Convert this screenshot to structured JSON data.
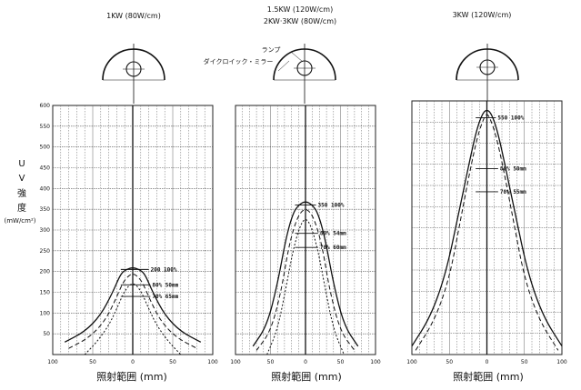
{
  "y_axis_label": {
    "line1": "U",
    "line2": "V",
    "line3": "強",
    "line4": "度",
    "unit": "(mW/cm²)"
  },
  "lamp_labels": {
    "lamp": "ランプ",
    "mirror": "ダイクロイック・ミラー"
  },
  "chart_data": [
    {
      "type": "line",
      "title": "1KW (80W/cm)",
      "xlabel": "照射範囲 (mm)",
      "ylabel": "UV強度 (mW/cm²)",
      "x_ticks": [
        "100",
        "50",
        "0",
        "50",
        "100"
      ],
      "xlim": [
        -100,
        100
      ],
      "y_ticks": [
        "50",
        "100",
        "150",
        "200",
        "250",
        "300",
        "350",
        "400",
        "450",
        "500",
        "550",
        "600"
      ],
      "ylim": [
        0,
        600
      ],
      "grid": true,
      "series": [
        {
          "x": [
            -85,
            -60,
            -40,
            -25,
            -15,
            -8,
            0,
            8,
            15,
            25,
            40,
            60,
            85
          ],
          "y": [
            30,
            55,
            95,
            150,
            195,
            205,
            210,
            205,
            195,
            150,
            95,
            55,
            30
          ]
        },
        {
          "x": [
            -80,
            -55,
            -35,
            -22,
            -12,
            -5,
            0,
            5,
            12,
            22,
            35,
            55,
            80
          ],
          "y": [
            15,
            40,
            80,
            130,
            175,
            190,
            195,
            190,
            175,
            130,
            80,
            40,
            15
          ]
        },
        {
          "x": [
            -60,
            -45,
            -30,
            -20,
            -10,
            0,
            10,
            20,
            30,
            45,
            60
          ],
          "y": [
            0,
            30,
            70,
            110,
            155,
            175,
            155,
            110,
            70,
            30,
            0
          ]
        }
      ],
      "annotations": [
        {
          "text": "200 100%",
          "x": 20,
          "y": 205
        },
        {
          "text": "80% 50mm",
          "x": 22,
          "y": 168
        },
        {
          "text": "70% 65mm",
          "x": 22,
          "y": 140
        }
      ]
    },
    {
      "type": "line",
      "title": "1.5KW (120W/cm)",
      "subtitle": "2KW·3KW (80W/cm)",
      "xlabel": "照射範囲 (mm)",
      "ylabel": "UV強度 (mW/cm²)",
      "x_ticks": [
        "100",
        "50",
        "0",
        "50",
        "100"
      ],
      "xlim": [
        -100,
        100
      ],
      "ylim": [
        0,
        600
      ],
      "grid": true,
      "series": [
        {
          "x": [
            -75,
            -55,
            -40,
            -28,
            -18,
            -10,
            0,
            10,
            18,
            28,
            40,
            55,
            75
          ],
          "y": [
            20,
            70,
            170,
            280,
            340,
            360,
            370,
            360,
            340,
            280,
            170,
            70,
            20
          ]
        },
        {
          "x": [
            -70,
            -50,
            -35,
            -24,
            -14,
            -6,
            0,
            6,
            14,
            24,
            35,
            50,
            70
          ],
          "y": [
            10,
            55,
            150,
            260,
            320,
            345,
            350,
            345,
            320,
            260,
            150,
            55,
            10
          ]
        },
        {
          "x": [
            -55,
            -40,
            -28,
            -18,
            -8,
            0,
            8,
            18,
            28,
            40,
            55
          ],
          "y": [
            0,
            60,
            160,
            250,
            310,
            330,
            310,
            250,
            160,
            60,
            0
          ]
        }
      ],
      "annotations": [
        {
          "text": "350 100%",
          "x": 15,
          "y": 360
        },
        {
          "text": "80% 54mm",
          "x": 18,
          "y": 292
        },
        {
          "text": "70% 60mm",
          "x": 18,
          "y": 258
        }
      ]
    },
    {
      "type": "line",
      "title": "3KW (120W/cm)",
      "xlabel": "照射範囲 (mm)",
      "ylabel": "UV強度 (mW/cm²)",
      "x_ticks": [
        "100",
        "50",
        "0",
        "50",
        "100"
      ],
      "xlim": [
        -100,
        100
      ],
      "ylim": [
        0,
        600
      ],
      "grid": true,
      "series": [
        {
          "x": [
            -100,
            -75,
            -55,
            -38,
            -24,
            -14,
            -6,
            0,
            6,
            14,
            24,
            38,
            55,
            75,
            100
          ],
          "y": [
            20,
            90,
            190,
            330,
            450,
            530,
            570,
            580,
            570,
            530,
            450,
            330,
            190,
            90,
            20
          ]
        },
        {
          "x": [
            -95,
            -70,
            -50,
            -35,
            -22,
            -12,
            -4,
            0,
            4,
            12,
            22,
            35,
            50,
            70,
            95
          ],
          "y": [
            10,
            80,
            180,
            320,
            440,
            520,
            560,
            570,
            560,
            520,
            440,
            320,
            180,
            80,
            10
          ]
        }
      ],
      "annotations": [
        {
          "text": "550 100%",
          "x": 12,
          "y": 560
        },
        {
          "text": "80% 50mm",
          "x": 15,
          "y": 440
        },
        {
          "text": "70% 55mm",
          "x": 15,
          "y": 385
        }
      ]
    }
  ]
}
